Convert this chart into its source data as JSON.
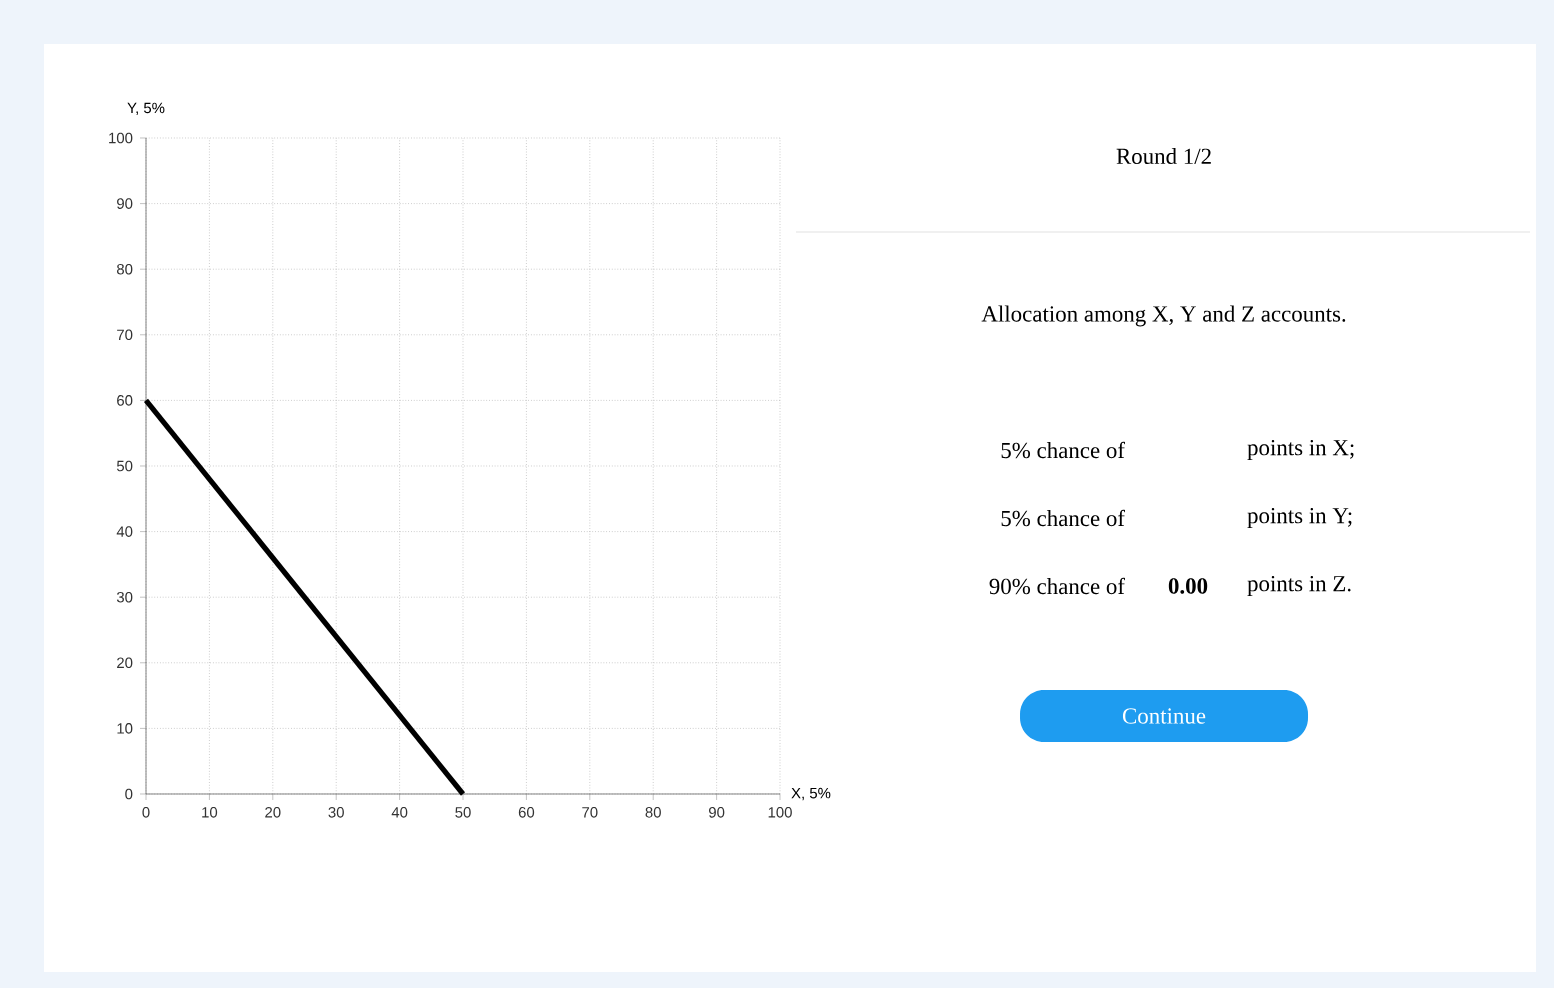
{
  "chart_data": [
    {
      "type": "line",
      "xlabel": "X, 5%",
      "ylabel": "Y, 5%",
      "series": [
        {
          "color": "#000000",
          "x": [
            0,
            50
          ],
          "values": [
            60,
            0
          ]
        }
      ],
      "xlim": [
        0,
        100
      ],
      "ylim": [
        0,
        100
      ],
      "xticks": [
        0,
        10,
        20,
        30,
        40,
        50,
        60,
        70,
        80,
        90,
        100
      ],
      "yticks": [
        0,
        10,
        20,
        30,
        40,
        50,
        60,
        70,
        80,
        90,
        100
      ],
      "grid": true,
      "marker": "none",
      "line_style": "solid"
    },
    {
      "type": "other",
      "title": "Round 1/2",
      "annotations": [
        "Allocation among X, Y and Z accounts.",
        "5% chance of",
        "points in X;",
        "5% chance of",
        "points in Y;",
        "90% chance of",
        "**0.00**",
        "points in Z.",
        "Continue"
      ]
    }
  ]
}
